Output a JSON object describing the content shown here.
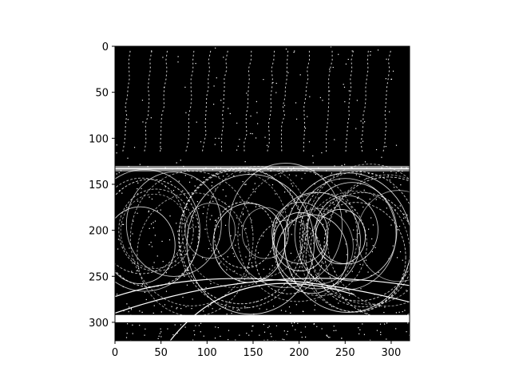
{
  "figure": {
    "background": "#ffffff",
    "image": {
      "description": "binary image (white speckles and curved streaks on black), matplotlib imshow",
      "colors": {
        "foreground": "#ffffff",
        "background": "#000000"
      },
      "extent_x": [
        0,
        320
      ],
      "extent_y": [
        0,
        320
      ],
      "y_axis_inverted": true
    },
    "x_axis": {
      "ticks": [
        {
          "value": 0,
          "label": "0"
        },
        {
          "value": 50,
          "label": "50"
        },
        {
          "value": 100,
          "label": "100"
        },
        {
          "value": 150,
          "label": "150"
        },
        {
          "value": 200,
          "label": "200"
        },
        {
          "value": 250,
          "label": "250"
        },
        {
          "value": 300,
          "label": "300"
        }
      ]
    },
    "y_axis": {
      "ticks": [
        {
          "value": 0,
          "label": "0"
        },
        {
          "value": 50,
          "label": "50"
        },
        {
          "value": 100,
          "label": "100"
        },
        {
          "value": 150,
          "label": "150"
        },
        {
          "value": 200,
          "label": "200"
        },
        {
          "value": 250,
          "label": "250"
        },
        {
          "value": 300,
          "label": "300"
        }
      ]
    }
  }
}
